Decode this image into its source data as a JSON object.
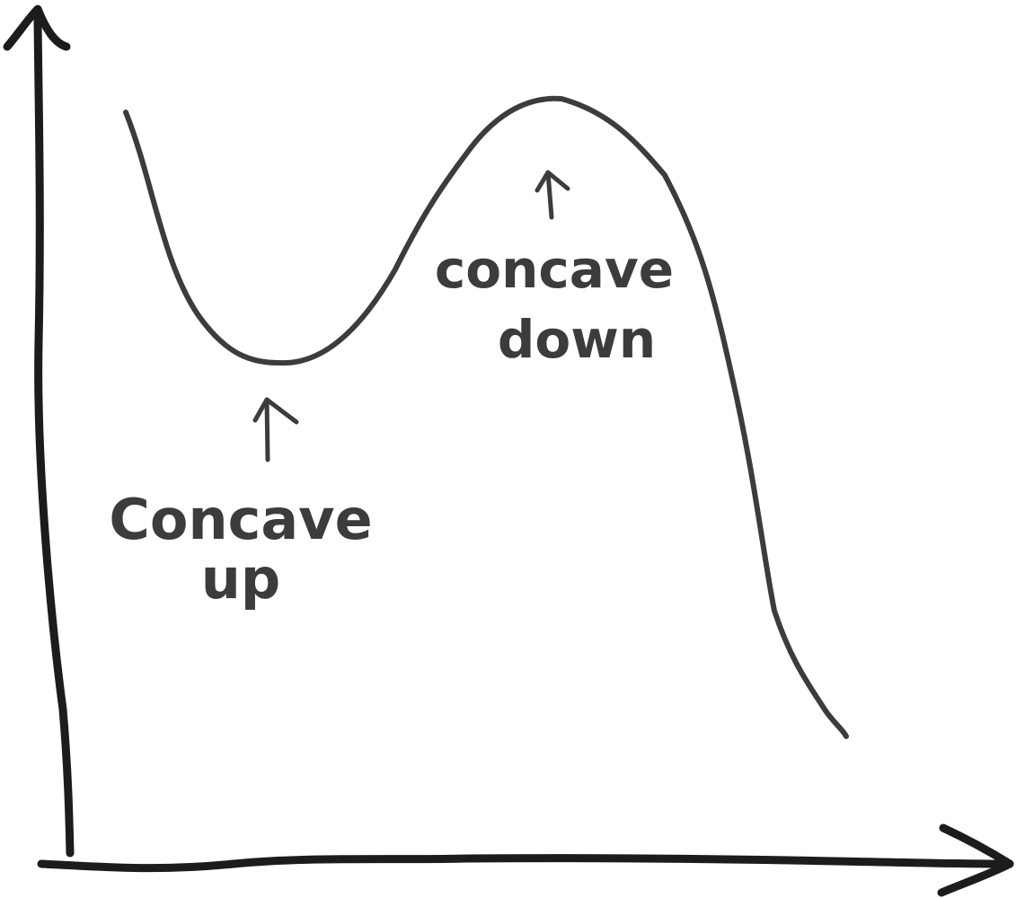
{
  "diagram": {
    "colors": {
      "ink": "#1c1c1c",
      "curve": "#3c3c3c",
      "background": "#ffffff"
    },
    "labels": {
      "concave_up": [
        "Concave",
        "up"
      ],
      "concave_down": [
        "concave",
        "down"
      ]
    }
  }
}
